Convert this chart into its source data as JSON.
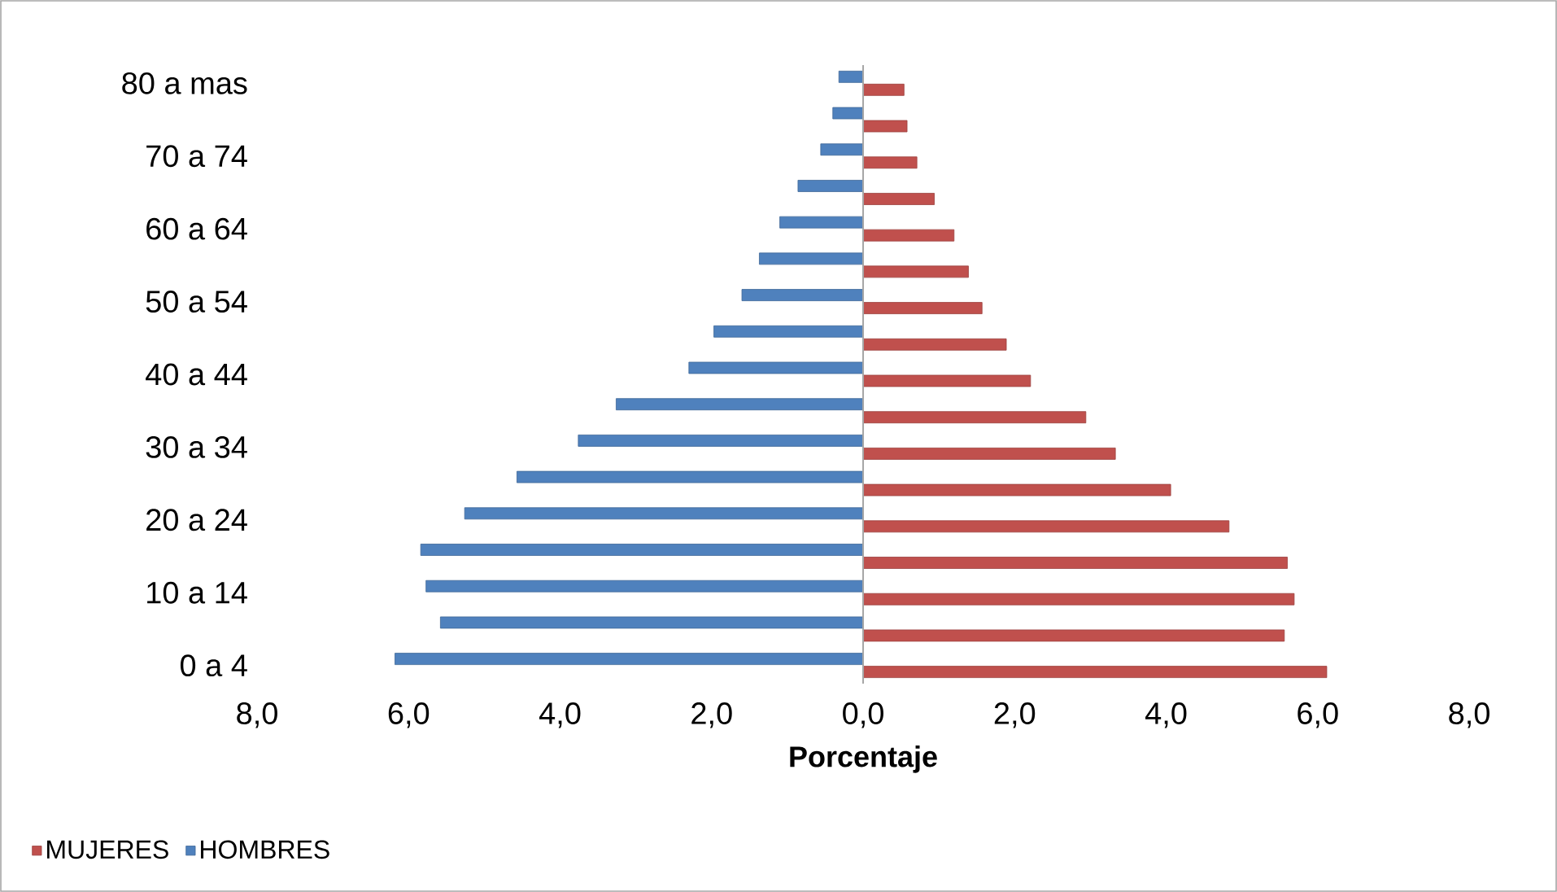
{
  "chart_data": {
    "type": "bar",
    "orientation": "horizontal",
    "xlabel": "Porcentaje",
    "categories": [
      "80 a mas",
      null,
      "70 a 74",
      null,
      "60 a 64",
      null,
      "50 a 54",
      null,
      "40 a 44",
      null,
      "30 a 34",
      null,
      "20 a 24",
      null,
      "10 a 14",
      null,
      "0 a 4"
    ],
    "series": [
      {
        "name": "MUJERES",
        "color": "#c0504d",
        "values": [
          0.54,
          0.58,
          0.71,
          0.94,
          1.2,
          1.39,
          1.57,
          1.89,
          2.21,
          2.94,
          3.33,
          4.06,
          4.83,
          5.6,
          5.69,
          5.56,
          6.12
        ]
      },
      {
        "name": "HOMBRES",
        "color": "#4f81bd",
        "values": [
          -0.32,
          -0.4,
          -0.56,
          -0.86,
          -1.1,
          -1.37,
          -1.6,
          -1.97,
          -2.3,
          -3.26,
          -3.76,
          -4.57,
          -5.26,
          -5.84,
          -5.77,
          -5.58,
          -6.18
        ]
      }
    ],
    "xlim": [
      -8,
      8
    ],
    "xticks": [
      {
        "value": -8,
        "label": "8,0"
      },
      {
        "value": -6,
        "label": "6,0"
      },
      {
        "value": -4,
        "label": "4,0"
      },
      {
        "value": -2,
        "label": "2,0"
      },
      {
        "value": 0,
        "label": "0,0"
      },
      {
        "value": 2,
        "label": "2,0"
      },
      {
        "value": 4,
        "label": "4,0"
      },
      {
        "value": 6,
        "label": "6,0"
      },
      {
        "value": 8,
        "label": "8,0"
      }
    ],
    "legend": "bottom left"
  }
}
